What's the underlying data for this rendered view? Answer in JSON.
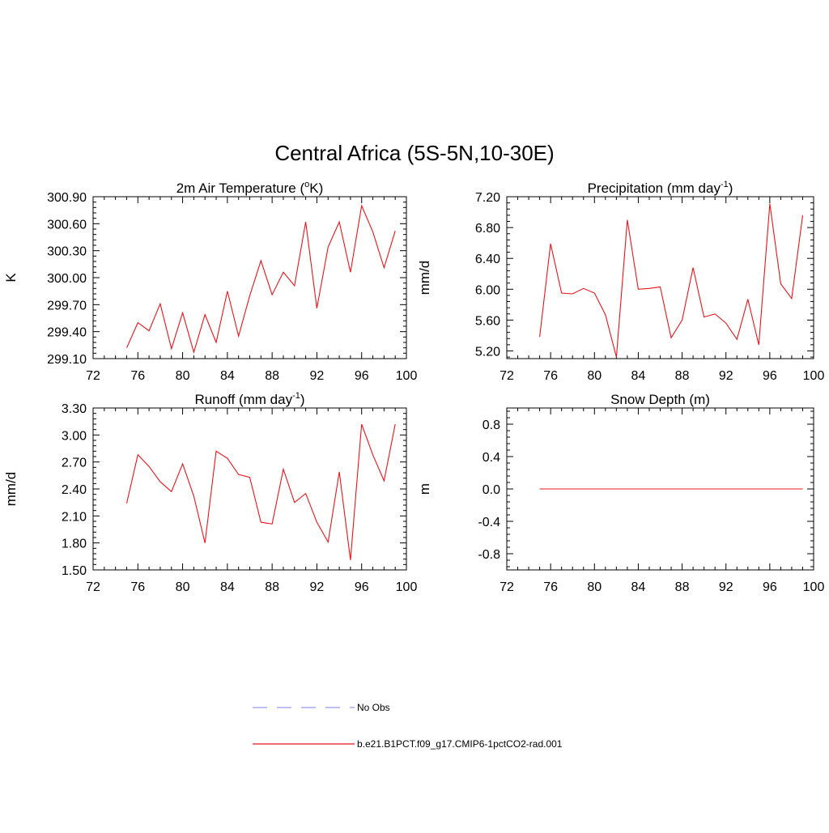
{
  "figure": {
    "title": "Central Africa (5S-5N,10-30E)"
  },
  "colors": {
    "model_line": "#e8141c",
    "obs_line": "#9999ee",
    "axis": "#000000"
  },
  "chart_data": [
    {
      "type": "line",
      "title": "2m Air Temperature (",
      "title_sup": "o",
      "title_tail": "K)",
      "ylabel": "K",
      "xlim": [
        72,
        100
      ],
      "ylim": [
        299.1,
        300.9
      ],
      "xticks": [
        72,
        76,
        80,
        84,
        88,
        92,
        96,
        100
      ],
      "yticks": [
        "299.10",
        "299.40",
        "299.70",
        "300.00",
        "300.30",
        "300.60",
        "300.90"
      ],
      "x": [
        75,
        76,
        77,
        78,
        79,
        80,
        81,
        82,
        83,
        84,
        85,
        86,
        87,
        88,
        89,
        90,
        91,
        92,
        93,
        94,
        95,
        96,
        97,
        98,
        99
      ],
      "series": [
        {
          "values": [
            299.22,
            299.5,
            299.41,
            299.71,
            299.21,
            299.61,
            299.17,
            299.59,
            299.28,
            299.85,
            299.35,
            299.8,
            300.19,
            299.81,
            300.06,
            299.91,
            300.62,
            299.66,
            300.34,
            300.62,
            300.06,
            300.8,
            300.51,
            300.11,
            300.52
          ]
        }
      ]
    },
    {
      "type": "line",
      "title": "Precipitation (mm day",
      "title_sup": "-1",
      "title_tail": ")",
      "ylabel": "mm/d",
      "xlim": [
        72,
        100
      ],
      "ylim": [
        5.1,
        7.2
      ],
      "xticks": [
        72,
        76,
        80,
        84,
        88,
        92,
        96,
        100
      ],
      "yticks": [
        "5.20",
        "5.60",
        "6.00",
        "6.40",
        "6.80",
        "7.20"
      ],
      "x": [
        75,
        76,
        77,
        78,
        79,
        80,
        81,
        82,
        83,
        84,
        85,
        86,
        87,
        88,
        89,
        90,
        91,
        92,
        93,
        94,
        95,
        96,
        97,
        98,
        99
      ],
      "series": [
        {
          "values": [
            5.38,
            6.59,
            5.95,
            5.94,
            6.01,
            5.95,
            5.67,
            5.12,
            6.9,
            6.0,
            6.01,
            6.03,
            5.37,
            5.6,
            6.28,
            5.64,
            5.68,
            5.56,
            5.35,
            5.87,
            5.28,
            7.11,
            6.07,
            5.88,
            6.96
          ]
        }
      ]
    },
    {
      "type": "line",
      "title": "Runoff (mm day",
      "title_sup": "-1",
      "title_tail": ")",
      "ylabel": "mm/d",
      "xlim": [
        72,
        100
      ],
      "ylim": [
        1.5,
        3.3
      ],
      "xticks": [
        72,
        76,
        80,
        84,
        88,
        92,
        96,
        100
      ],
      "yticks": [
        "1.50",
        "1.80",
        "2.10",
        "2.40",
        "2.70",
        "3.00",
        "3.30"
      ],
      "x": [
        75,
        76,
        77,
        78,
        79,
        80,
        81,
        82,
        83,
        84,
        85,
        86,
        87,
        88,
        89,
        90,
        91,
        92,
        93,
        94,
        95,
        96,
        97,
        98,
        99
      ],
      "series": [
        {
          "values": [
            2.24,
            2.78,
            2.65,
            2.48,
            2.37,
            2.68,
            2.32,
            1.8,
            2.82,
            2.74,
            2.56,
            2.53,
            2.03,
            2.01,
            2.62,
            2.25,
            2.35,
            2.03,
            1.81,
            2.59,
            1.61,
            3.12,
            2.78,
            2.49,
            3.12
          ]
        }
      ]
    },
    {
      "type": "line",
      "title": "Snow Depth (m)",
      "title_sup": "",
      "title_tail": "",
      "ylabel": "m",
      "xlim": [
        72,
        100
      ],
      "ylim": [
        -1.0,
        1.0
      ],
      "xticks": [
        72,
        76,
        80,
        84,
        88,
        92,
        96,
        100
      ],
      "yticks": [
        "-0.8",
        "-0.4",
        "0.0",
        "0.4",
        "0.8"
      ],
      "x": [
        75,
        76,
        77,
        78,
        79,
        80,
        81,
        82,
        83,
        84,
        85,
        86,
        87,
        88,
        89,
        90,
        91,
        92,
        93,
        94,
        95,
        96,
        97,
        98,
        99
      ],
      "series": [
        {
          "values": [
            0,
            0,
            0,
            0,
            0,
            0,
            0,
            0,
            0,
            0,
            0,
            0,
            0,
            0,
            0,
            0,
            0,
            0,
            0,
            0,
            0,
            0,
            0,
            0,
            0
          ]
        }
      ]
    }
  ],
  "legend": [
    {
      "label": "No Obs",
      "style": "dashed"
    },
    {
      "label": "b.e21.B1PCT.f09_g17.CMIP6-1pctCO2-rad.001",
      "style": "solid"
    }
  ]
}
